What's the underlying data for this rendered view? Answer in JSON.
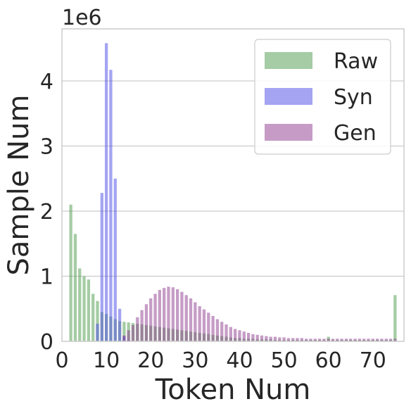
{
  "chart_data": {
    "type": "bar",
    "xlabel": "Token Num",
    "ylabel": "Sample Num",
    "y_offset_label": "1e6",
    "xlim": [
      0,
      77
    ],
    "ylim": [
      0,
      4.8
    ],
    "y_unit_multiplier": 1000000,
    "xticks": [
      0,
      10,
      20,
      30,
      40,
      50,
      60,
      70
    ],
    "xtick_labels": [
      "0",
      "10",
      "20",
      "30",
      "40",
      "50",
      "60",
      "70"
    ],
    "yticks": [
      0,
      1,
      2,
      3,
      4
    ],
    "ytick_labels": [
      "0",
      "1",
      "2",
      "3",
      "4"
    ],
    "grid": "horizontal",
    "legend_position": "top-right",
    "x": [
      2,
      3,
      4,
      5,
      6,
      7,
      8,
      9,
      10,
      11,
      12,
      13,
      14,
      15,
      16,
      17,
      18,
      19,
      20,
      21,
      22,
      23,
      24,
      25,
      26,
      27,
      28,
      29,
      30,
      31,
      32,
      33,
      34,
      35,
      36,
      37,
      38,
      39,
      40,
      41,
      42,
      43,
      44,
      45,
      46,
      47,
      48,
      49,
      50,
      51,
      52,
      53,
      54,
      55,
      56,
      57,
      58,
      59,
      60,
      61,
      62,
      63,
      64,
      65,
      66,
      67,
      68,
      69,
      70,
      71,
      72,
      73,
      74,
      75
    ],
    "series": [
      {
        "name": "Raw",
        "color": "#4c9a4a",
        "values": [
          2.1,
          1.65,
          1.12,
          1.0,
          0.95,
          0.73,
          0.62,
          0.45,
          0.42,
          0.38,
          0.34,
          0.31,
          0.3,
          0.29,
          0.28,
          0.27,
          0.26,
          0.25,
          0.24,
          0.23,
          0.22,
          0.21,
          0.2,
          0.19,
          0.18,
          0.17,
          0.16,
          0.15,
          0.14,
          0.13,
          0.12,
          0.11,
          0.1,
          0.09,
          0.08,
          0.07,
          0.06,
          0.05,
          0.05,
          0.04,
          0.04,
          0.04,
          0.03,
          0.03,
          0.03,
          0.03,
          0.02,
          0.02,
          0.02,
          0.02,
          0.02,
          0.02,
          0.02,
          0.02,
          0.02,
          0.02,
          0.02,
          0.02,
          0.07,
          0.02,
          0.02,
          0.02,
          0.02,
          0.02,
          0.02,
          0.02,
          0.02,
          0.02,
          0.02,
          0.02,
          0.02,
          0.02,
          0.02,
          0.71
        ]
      },
      {
        "name": "Syn",
        "color": "#4a4ae8",
        "values": [
          0,
          0,
          0,
          0,
          0,
          0,
          0.27,
          2.28,
          4.58,
          4.17,
          2.5,
          0.5,
          0.08,
          0.02,
          0,
          0,
          0,
          0,
          0,
          0,
          0,
          0,
          0,
          0,
          0,
          0,
          0,
          0,
          0,
          0,
          0,
          0,
          0,
          0,
          0,
          0,
          0,
          0,
          0,
          0,
          0,
          0,
          0,
          0,
          0,
          0,
          0,
          0,
          0,
          0,
          0,
          0,
          0,
          0,
          0,
          0,
          0,
          0,
          0,
          0,
          0,
          0,
          0,
          0,
          0,
          0,
          0,
          0,
          0,
          0,
          0,
          0,
          0,
          0
        ]
      },
      {
        "name": "Gen",
        "color": "#8e3a8e",
        "values": [
          0,
          0,
          0,
          0,
          0,
          0,
          0,
          0,
          0,
          0,
          0,
          0,
          0.09,
          0.17,
          0.25,
          0.37,
          0.48,
          0.57,
          0.66,
          0.73,
          0.79,
          0.82,
          0.84,
          0.83,
          0.8,
          0.76,
          0.71,
          0.66,
          0.6,
          0.54,
          0.49,
          0.44,
          0.39,
          0.34,
          0.3,
          0.26,
          0.22,
          0.19,
          0.17,
          0.15,
          0.13,
          0.11,
          0.1,
          0.09,
          0.08,
          0.07,
          0.07,
          0.06,
          0.06,
          0.05,
          0.05,
          0.05,
          0.05,
          0.04,
          0.04,
          0.04,
          0.04,
          0.04,
          0.04,
          0.04,
          0.04,
          0.04,
          0.04,
          0.04,
          0.04,
          0.04,
          0.04,
          0.04,
          0.04,
          0.04,
          0.04,
          0.04,
          0.04,
          0.04
        ]
      }
    ]
  }
}
